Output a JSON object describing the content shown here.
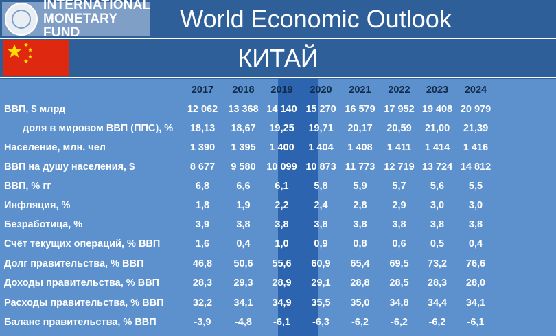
{
  "header": {
    "logo_line1": "INTERNATIONAL",
    "logo_line2": "MONETARY FUND",
    "title": "World Economic Outlook",
    "country": "КИТАЙ"
  },
  "colors": {
    "background": "#2e5f99",
    "table": "#5d91ce",
    "highlight_column": "#2c64b0",
    "flag_red": "#de2910",
    "flag_star": "#ffde00"
  },
  "chart_data": {
    "type": "table",
    "title": "World Economic Outlook",
    "subtitle": "КИТАЙ",
    "highlight_column": "2019",
    "columns": [
      "2017",
      "2018",
      "2019",
      "2020",
      "2021",
      "2022",
      "2023",
      "2024"
    ],
    "rows": [
      {
        "label": "ВВП, $ млрд",
        "indent": false,
        "values": [
          "12 062",
          "13 368",
          "14 140",
          "15 270",
          "16 579",
          "17 952",
          "19 408",
          "20 979"
        ]
      },
      {
        "label": "доля в мировом ВВП (ППС), %",
        "indent": true,
        "values": [
          "18,13",
          "18,67",
          "19,25",
          "19,71",
          "20,17",
          "20,59",
          "21,00",
          "21,39"
        ]
      },
      {
        "label": "Население, млн. чел",
        "indent": false,
        "values": [
          "1 390",
          "1 395",
          "1 400",
          "1 404",
          "1 408",
          "1 411",
          "1 414",
          "1 416"
        ]
      },
      {
        "label": "ВВП на душу населения, $",
        "indent": false,
        "values": [
          "8 677",
          "9 580",
          "10 099",
          "10 873",
          "11 773",
          "12 719",
          "13 724",
          "14 812"
        ]
      },
      {
        "label": "ВВП, % гг",
        "indent": false,
        "values": [
          "6,8",
          "6,6",
          "6,1",
          "5,8",
          "5,9",
          "5,7",
          "5,6",
          "5,5"
        ]
      },
      {
        "label": "Инфляция, %",
        "indent": false,
        "values": [
          "1,8",
          "1,9",
          "2,2",
          "2,4",
          "2,8",
          "2,9",
          "3,0",
          "3,0"
        ]
      },
      {
        "label": "Безработица, %",
        "indent": false,
        "values": [
          "3,9",
          "3,8",
          "3,8",
          "3,8",
          "3,8",
          "3,8",
          "3,8",
          "3,8"
        ]
      },
      {
        "label": "Счёт текущих операций, % ВВП",
        "indent": false,
        "values": [
          "1,6",
          "0,4",
          "1,0",
          "0,9",
          "0,8",
          "0,6",
          "0,5",
          "0,4"
        ]
      },
      {
        "label": "Долг правительства, % ВВП",
        "indent": false,
        "values": [
          "46,8",
          "50,6",
          "55,6",
          "60,9",
          "65,4",
          "69,5",
          "73,2",
          "76,6"
        ]
      },
      {
        "label": "Доходы правительства, % ВВП",
        "indent": false,
        "values": [
          "28,3",
          "29,3",
          "28,9",
          "29,1",
          "28,8",
          "28,5",
          "28,3",
          "28,0"
        ]
      },
      {
        "label": "Расходы правительства, % ВВП",
        "indent": false,
        "values": [
          "32,2",
          "34,1",
          "34,9",
          "35,5",
          "35,0",
          "34,8",
          "34,4",
          "34,1"
        ]
      },
      {
        "label": "Баланс правительства, % ВВП",
        "indent": false,
        "values": [
          "-3,9",
          "-4,8",
          "-6,1",
          "-6,3",
          "-6,2",
          "-6,2",
          "-6,2",
          "-6,1"
        ]
      }
    ]
  }
}
